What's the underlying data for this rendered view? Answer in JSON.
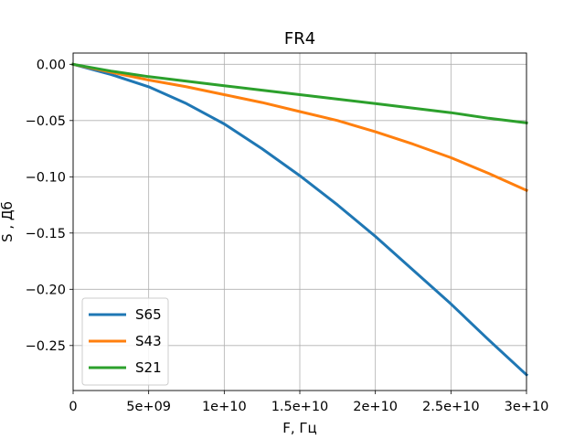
{
  "chart_data": {
    "type": "line",
    "title": "FR4",
    "xlabel": "F, Гц",
    "ylabel": "S , Дб",
    "xlim": [
      0,
      30000000000
    ],
    "ylim": [
      -0.29,
      0.01
    ],
    "xticks": [
      0,
      5000000000,
      10000000000,
      15000000000,
      20000000000,
      25000000000,
      30000000000
    ],
    "xtick_labels": [
      "0",
      "5e+09",
      "1e+10",
      "1.5e+10",
      "2e+10",
      "2.5e+10",
      "3e+10"
    ],
    "yticks": [
      0.0,
      -0.05,
      -0.1,
      -0.15,
      -0.2,
      -0.25
    ],
    "ytick_labels": [
      "0.00",
      "−0.05",
      "−0.10",
      "−0.15",
      "−0.20",
      "−0.25"
    ],
    "grid": true,
    "legend_position": "lower-left",
    "x": [
      0,
      2500000000,
      5000000000,
      7500000000,
      10000000000,
      12500000000,
      15000000000,
      17500000000,
      20000000000,
      22500000000,
      25000000000,
      27500000000,
      30000000000
    ],
    "series": [
      {
        "name": "S65",
        "color": "#1f77b4",
        "values": [
          0.0,
          -0.009,
          -0.02,
          -0.035,
          -0.053,
          -0.075,
          -0.099,
          -0.125,
          -0.153,
          -0.183,
          -0.213,
          -0.245,
          -0.276
        ]
      },
      {
        "name": "S43",
        "color": "#ff7f0e",
        "values": [
          0.0,
          -0.007,
          -0.014,
          -0.02,
          -0.027,
          -0.034,
          -0.042,
          -0.05,
          -0.06,
          -0.071,
          -0.083,
          -0.097,
          -0.112
        ]
      },
      {
        "name": "S21",
        "color": "#2ca02c",
        "values": [
          0.0,
          -0.006,
          -0.011,
          -0.015,
          -0.019,
          -0.023,
          -0.027,
          -0.031,
          -0.035,
          -0.039,
          -0.043,
          -0.048,
          -0.052
        ]
      }
    ]
  }
}
